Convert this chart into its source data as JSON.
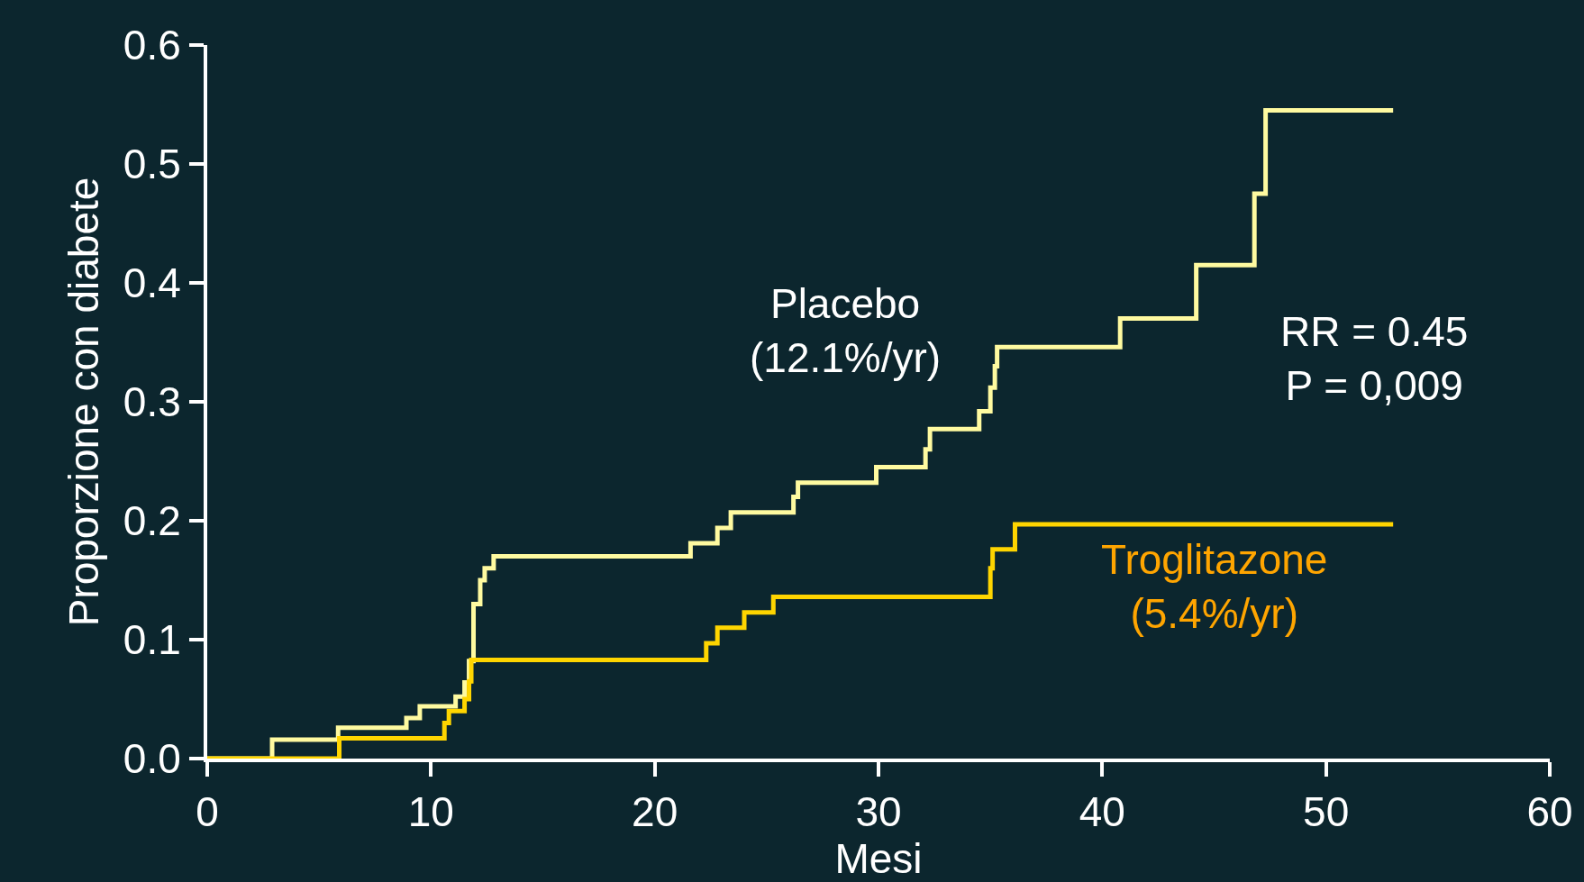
{
  "chart_data": {
    "type": "step",
    "xlabel": "Mesi",
    "ylabel": "Proporzione con diabete",
    "xlim": [
      0,
      60
    ],
    "xticks": [
      0,
      10,
      20,
      30,
      40,
      50,
      60
    ],
    "ylim": [
      0,
      0.6
    ],
    "yticks": [
      {
        "value": 0,
        "label": "0.0"
      },
      0.1,
      0.2,
      0.3,
      0.4,
      0.5,
      0.6
    ],
    "grid": false,
    "legend": false,
    "series": [
      {
        "name": "Placebo\n(12.1%/yr)",
        "color": "#fffaa0",
        "x": [
          0,
          2.9,
          5.85,
          8.9,
          9.5,
          11.1,
          11.5,
          11.7,
          11.9,
          12.2,
          12.4,
          12.8,
          21.6,
          22.8,
          23.4,
          26.2,
          26.4,
          29.9,
          32.1,
          32.3,
          34.5,
          35.0,
          35.2,
          35.3,
          40.8,
          44.2,
          46.8,
          47.3,
          53.0
        ],
        "values": [
          0,
          0.016,
          0.026,
          0.034,
          0.044,
          0.052,
          0.064,
          0.082,
          0.13,
          0.15,
          0.16,
          0.17,
          0.181,
          0.194,
          0.207,
          0.22,
          0.232,
          0.245,
          0.26,
          0.277,
          0.292,
          0.312,
          0.33,
          0.346,
          0.37,
          0.415,
          0.475,
          0.545,
          0.545
        ]
      },
      {
        "name": "Troglitazone\n(5.4%/yr)",
        "color": "#ffd500",
        "x": [
          0,
          5.9,
          10.6,
          10.8,
          11.5,
          11.7,
          11.8,
          22.3,
          22.8,
          24.0,
          25.3,
          35.0,
          35.1,
          36.1,
          53.0
        ],
        "values": [
          0,
          0.017,
          0.03,
          0.04,
          0.05,
          0.065,
          0.083,
          0.097,
          0.11,
          0.123,
          0.136,
          0.16,
          0.176,
          0.197,
          0.197
        ]
      }
    ],
    "annotations": [
      "RR = 0.45\nP = 0,009"
    ]
  }
}
